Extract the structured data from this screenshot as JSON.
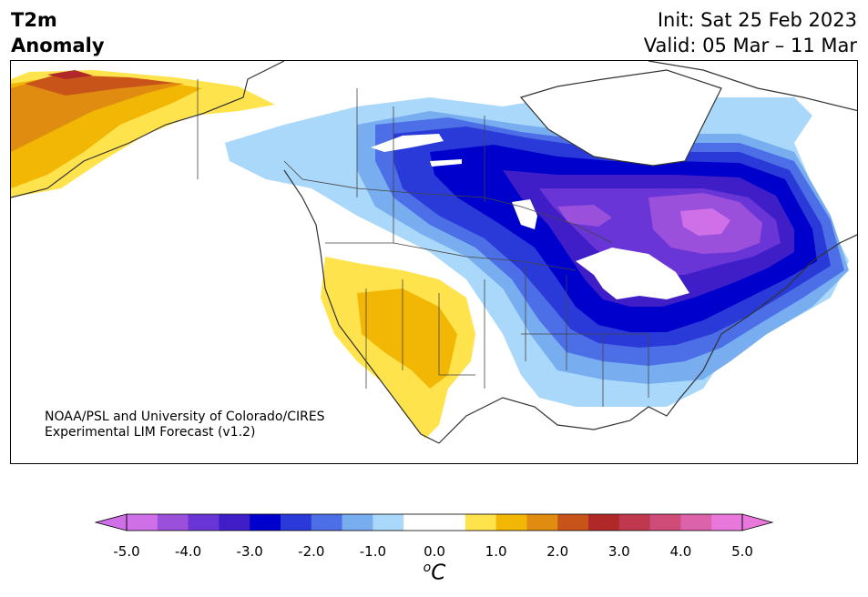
{
  "header": {
    "title_line1": "T2m",
    "title_line2": "Anomaly",
    "init_text": "Init: Sat 25 Feb 2023",
    "valid_text": "Valid: 05 Mar – 11 Mar"
  },
  "credit": {
    "line1": "NOAA/PSL and University of Colorado/CIRES",
    "line2": "Experimental LIM Forecast (v1.2)"
  },
  "colorbar": {
    "unit": "C",
    "unit_prefix": "o",
    "tick_labels": [
      "-5.0",
      "-4.0",
      "-3.0",
      "-2.0",
      "-1.0",
      "0.0",
      "1.0",
      "2.0",
      "3.0",
      "4.0",
      "5.0"
    ],
    "bins": [
      {
        "range": "-5.0 to -4.5",
        "color": "#d070e8"
      },
      {
        "range": "-4.5 to -4.0",
        "color": "#9b50dc"
      },
      {
        "range": "-4.0 to -3.5",
        "color": "#6a35d6"
      },
      {
        "range": "-3.5 to -3.0",
        "color": "#3f1ec8"
      },
      {
        "range": "-3.0 to -2.5",
        "color": "#0000cd"
      },
      {
        "range": "-2.5 to -2.0",
        "color": "#2a3ad8"
      },
      {
        "range": "-2.0 to -1.5",
        "color": "#4c6ee6"
      },
      {
        "range": "-1.5 to -1.0",
        "color": "#78aef0"
      },
      {
        "range": "-1.0 to -0.5",
        "color": "#aad8fa"
      },
      {
        "range": "-0.5 to 0.5",
        "color": "#ffffff"
      },
      {
        "range": "0.5 to 1.0",
        "color": "#ffe34d"
      },
      {
        "range": "1.0 to 1.5",
        "color": "#f2b705"
      },
      {
        "range": "1.5 to 2.0",
        "color": "#e08c10"
      },
      {
        "range": "2.0 to 2.5",
        "color": "#c8541a"
      },
      {
        "range": "2.5 to 3.0",
        "color": "#b02828"
      },
      {
        "range": "3.0 to 3.5",
        "color": "#c0384e"
      },
      {
        "range": "3.5 to 4.0",
        "color": "#d04c78"
      },
      {
        "range": "4.0 to 4.5",
        "color": "#dc62aa"
      },
      {
        "range": "4.5 to 5.0",
        "color": "#e878dc"
      }
    ],
    "under_color": "#d070e8",
    "over_color": "#e878dc"
  },
  "map": {
    "region": "North America",
    "features": [
      {
        "area": "Alaska",
        "anomaly": "warm, up to 3.0 near northern coast"
      },
      {
        "area": "US Southwest",
        "anomaly": "warm, 1.0 to 1.5"
      },
      {
        "area": "Central Canada to Northeast US",
        "anomaly": "cold, -2.5 to -3.5"
      },
      {
        "area": "Northern Quebec",
        "anomaly": "cold, below -4.5"
      },
      {
        "area": "Southeast US",
        "anomaly": "cold, -0.5 to -1.5"
      }
    ]
  }
}
